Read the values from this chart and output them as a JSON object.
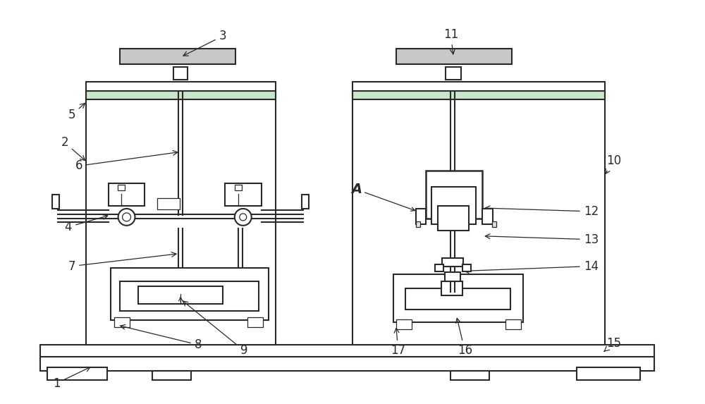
{
  "bg_color": "#ffffff",
  "line_color": "#2a2a2a",
  "lw": 1.5,
  "tlw": 0.9,
  "fs": 12
}
